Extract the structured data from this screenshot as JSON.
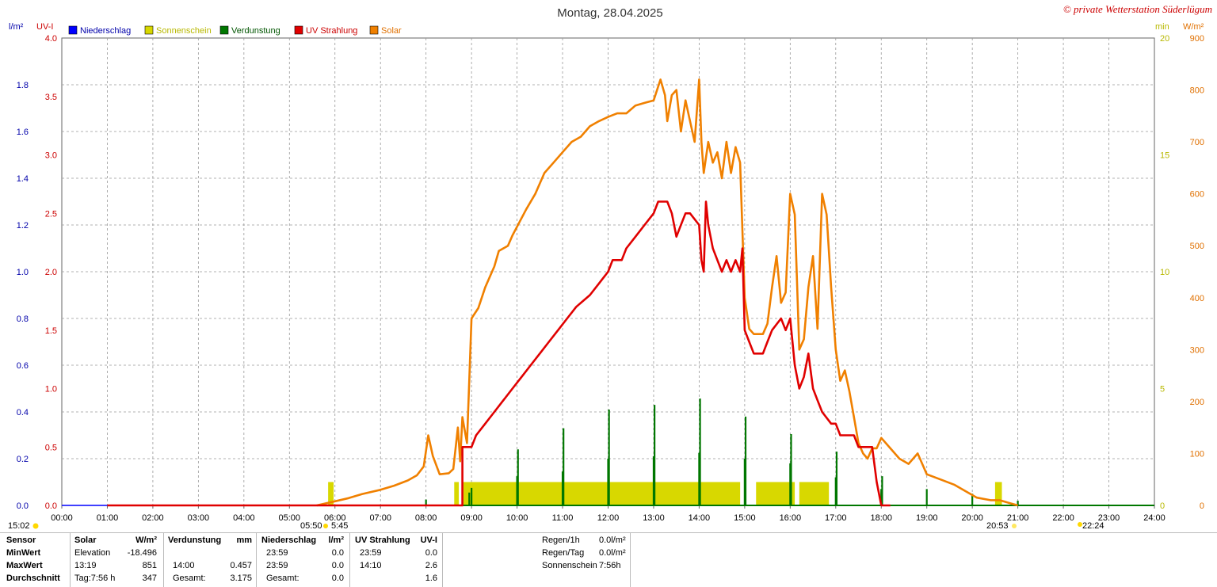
{
  "header": {
    "title": "Montag, 28.04.2025",
    "credit": "© private Wetterstation Süderlügum",
    "left_unit1": "l/m²",
    "left_unit2": "UV-I",
    "right_unit1": "min",
    "right_unit2": "W/m²"
  },
  "legend": [
    {
      "label": "Niederschlag",
      "color": "#0000ff",
      "text_color": "#0000aa"
    },
    {
      "label": "Sonnenschein",
      "color": "#d8d800",
      "text_color": "#b8b800"
    },
    {
      "label": "Verdunstung",
      "color": "#007700",
      "text_color": "#005500"
    },
    {
      "label": "UV Strahlung",
      "color": "#e00000",
      "text_color": "#cc0000"
    },
    {
      "label": "Solar",
      "color": "#f08000",
      "text_color": "#e07000"
    }
  ],
  "sun_markers": {
    "left_time": "15:02",
    "sunrise_a": "05:50",
    "sunrise_b": "5:45",
    "sunset_a": "20:53",
    "moon_b": "22:24"
  },
  "chart_data": {
    "type": "line",
    "x_axis": {
      "ticks": [
        "00:00",
        "01:00",
        "02:00",
        "03:00",
        "04:00",
        "05:00",
        "06:00",
        "07:00",
        "08:00",
        "09:00",
        "10:00",
        "11:00",
        "12:00",
        "13:00",
        "14:00",
        "15:00",
        "16:00",
        "17:00",
        "18:00",
        "19:00",
        "20:00",
        "21:00",
        "22:00",
        "23:00",
        "24:00"
      ],
      "range": [
        0,
        24
      ]
    },
    "axes": {
      "niederschlag": {
        "unit": "l/m²",
        "range": [
          0,
          2.0
        ],
        "ticks": [
          "0.0",
          "0.2",
          "0.4",
          "0.6",
          "0.8",
          "1.0",
          "1.2",
          "1.4",
          "1.6",
          "1.8"
        ],
        "color": "#0000aa"
      },
      "uv": {
        "unit": "UV-I",
        "range": [
          0,
          4.0
        ],
        "ticks": [
          "0.0",
          "0.5",
          "1.0",
          "1.5",
          "2.0",
          "2.5",
          "3.0",
          "3.5",
          "4.0"
        ],
        "color": "#cc0000"
      },
      "sonnenschein": {
        "unit": "min",
        "range": [
          0,
          20
        ],
        "ticks": [
          "0",
          "5",
          "10",
          "15",
          "20"
        ],
        "color": "#b8b800"
      },
      "solar": {
        "unit": "W/m²",
        "range": [
          0,
          900
        ],
        "ticks": [
          "0",
          "100",
          "200",
          "300",
          "400",
          "500",
          "600",
          "700",
          "800",
          "900"
        ],
        "color": "#e07000"
      }
    },
    "grid": true,
    "series": [
      {
        "name": "Solar",
        "axis": "solar",
        "color": "#f08000",
        "points": [
          [
            5.6,
            0
          ],
          [
            5.8,
            4
          ],
          [
            6.0,
            8
          ],
          [
            6.3,
            14
          ],
          [
            6.6,
            22
          ],
          [
            7.0,
            30
          ],
          [
            7.3,
            38
          ],
          [
            7.6,
            48
          ],
          [
            7.8,
            58
          ],
          [
            7.95,
            75
          ],
          [
            8.05,
            135
          ],
          [
            8.15,
            95
          ],
          [
            8.3,
            60
          ],
          [
            8.5,
            62
          ],
          [
            8.6,
            70
          ],
          [
            8.7,
            150
          ],
          [
            8.75,
            85
          ],
          [
            8.8,
            170
          ],
          [
            8.9,
            120
          ],
          [
            9.0,
            360
          ],
          [
            9.15,
            380
          ],
          [
            9.3,
            420
          ],
          [
            9.5,
            460
          ],
          [
            9.6,
            490
          ],
          [
            9.8,
            500
          ],
          [
            9.9,
            520
          ],
          [
            10.2,
            570
          ],
          [
            10.4,
            600
          ],
          [
            10.6,
            640
          ],
          [
            10.8,
            660
          ],
          [
            11.0,
            680
          ],
          [
            11.2,
            700
          ],
          [
            11.4,
            710
          ],
          [
            11.6,
            730
          ],
          [
            11.8,
            740
          ],
          [
            12.0,
            748
          ],
          [
            12.2,
            755
          ],
          [
            12.4,
            755
          ],
          [
            12.6,
            770
          ],
          [
            12.8,
            775
          ],
          [
            13.0,
            780
          ],
          [
            13.15,
            820
          ],
          [
            13.25,
            790
          ],
          [
            13.3,
            740
          ],
          [
            13.4,
            790
          ],
          [
            13.5,
            800
          ],
          [
            13.6,
            720
          ],
          [
            13.7,
            780
          ],
          [
            13.8,
            740
          ],
          [
            13.9,
            700
          ],
          [
            14.0,
            820
          ],
          [
            14.05,
            700
          ],
          [
            14.1,
            640
          ],
          [
            14.2,
            700
          ],
          [
            14.3,
            660
          ],
          [
            14.4,
            680
          ],
          [
            14.5,
            630
          ],
          [
            14.6,
            700
          ],
          [
            14.7,
            640
          ],
          [
            14.8,
            690
          ],
          [
            14.9,
            660
          ],
          [
            15.0,
            400
          ],
          [
            15.1,
            340
          ],
          [
            15.2,
            330
          ],
          [
            15.4,
            330
          ],
          [
            15.5,
            350
          ],
          [
            15.6,
            420
          ],
          [
            15.7,
            480
          ],
          [
            15.8,
            390
          ],
          [
            15.9,
            410
          ],
          [
            16.0,
            600
          ],
          [
            16.1,
            560
          ],
          [
            16.2,
            300
          ],
          [
            16.3,
            320
          ],
          [
            16.4,
            420
          ],
          [
            16.5,
            480
          ],
          [
            16.6,
            340
          ],
          [
            16.7,
            600
          ],
          [
            16.8,
            560
          ],
          [
            16.9,
            420
          ],
          [
            17.0,
            300
          ],
          [
            17.1,
            240
          ],
          [
            17.2,
            260
          ],
          [
            17.3,
            220
          ],
          [
            17.4,
            170
          ],
          [
            17.5,
            120
          ],
          [
            17.6,
            100
          ],
          [
            17.7,
            90
          ],
          [
            17.8,
            110
          ],
          [
            17.9,
            110
          ],
          [
            18.0,
            130
          ],
          [
            18.2,
            110
          ],
          [
            18.4,
            90
          ],
          [
            18.6,
            80
          ],
          [
            18.8,
            100
          ],
          [
            18.9,
            80
          ],
          [
            19.0,
            60
          ],
          [
            19.3,
            50
          ],
          [
            19.6,
            40
          ],
          [
            19.9,
            25
          ],
          [
            20.1,
            15
          ],
          [
            20.4,
            10
          ],
          [
            20.6,
            10
          ],
          [
            20.8,
            5
          ],
          [
            21.0,
            0
          ]
        ]
      },
      {
        "name": "UV Strahlung",
        "axis": "uv",
        "color": "#e00000",
        "points": [
          [
            1.0,
            0
          ],
          [
            4.0,
            0
          ],
          [
            8.8,
            0
          ],
          [
            8.8,
            0.5
          ],
          [
            9.0,
            0.5
          ],
          [
            9.1,
            0.6
          ],
          [
            9.3,
            0.7
          ],
          [
            9.5,
            0.8
          ],
          [
            9.7,
            0.9
          ],
          [
            9.9,
            1.0
          ],
          [
            10.1,
            1.1
          ],
          [
            10.3,
            1.2
          ],
          [
            10.5,
            1.3
          ],
          [
            10.7,
            1.4
          ],
          [
            10.9,
            1.5
          ],
          [
            11.1,
            1.6
          ],
          [
            11.3,
            1.7
          ],
          [
            11.6,
            1.8
          ],
          [
            11.8,
            1.9
          ],
          [
            12.0,
            2.0
          ],
          [
            12.1,
            2.1
          ],
          [
            12.3,
            2.1
          ],
          [
            12.4,
            2.2
          ],
          [
            12.6,
            2.3
          ],
          [
            12.8,
            2.4
          ],
          [
            13.0,
            2.5
          ],
          [
            13.1,
            2.6
          ],
          [
            13.3,
            2.6
          ],
          [
            13.4,
            2.5
          ],
          [
            13.5,
            2.3
          ],
          [
            13.6,
            2.4
          ],
          [
            13.7,
            2.5
          ],
          [
            13.8,
            2.5
          ],
          [
            14.0,
            2.4
          ],
          [
            14.05,
            2.1
          ],
          [
            14.1,
            2.0
          ],
          [
            14.15,
            2.6
          ],
          [
            14.2,
            2.4
          ],
          [
            14.3,
            2.2
          ],
          [
            14.4,
            2.1
          ],
          [
            14.5,
            2.0
          ],
          [
            14.6,
            2.1
          ],
          [
            14.7,
            2.0
          ],
          [
            14.8,
            2.1
          ],
          [
            14.9,
            2.0
          ],
          [
            14.95,
            2.2
          ],
          [
            15.0,
            1.5
          ],
          [
            15.1,
            1.4
          ],
          [
            15.2,
            1.3
          ],
          [
            15.4,
            1.3
          ],
          [
            15.5,
            1.4
          ],
          [
            15.6,
            1.5
          ],
          [
            15.8,
            1.6
          ],
          [
            15.9,
            1.5
          ],
          [
            16.0,
            1.6
          ],
          [
            16.1,
            1.2
          ],
          [
            16.2,
            1.0
          ],
          [
            16.3,
            1.1
          ],
          [
            16.4,
            1.3
          ],
          [
            16.5,
            1.0
          ],
          [
            16.6,
            0.9
          ],
          [
            16.7,
            0.8
          ],
          [
            16.9,
            0.7
          ],
          [
            17.0,
            0.7
          ],
          [
            17.1,
            0.6
          ],
          [
            17.4,
            0.6
          ],
          [
            17.5,
            0.5
          ],
          [
            17.8,
            0.5
          ],
          [
            17.9,
            0.2
          ],
          [
            18.0,
            0
          ],
          [
            18.2,
            0
          ]
        ]
      }
    ],
    "bars": {
      "Sonnenschein": {
        "axis": "sonnenschein",
        "color": "#d8d800",
        "spans": [
          [
            5.85,
            5.97
          ],
          [
            8.62,
            8.72
          ],
          [
            8.82,
            14.9
          ],
          [
            15.25,
            16.1
          ],
          [
            16.2,
            16.85
          ],
          [
            20.5,
            20.65
          ]
        ],
        "value": 1
      },
      "Verdunstung": {
        "axis": "niederschlag",
        "color": "#007700",
        "spikes": [
          [
            8.0,
            0.025
          ],
          [
            8.95,
            0.055
          ],
          [
            9.0,
            0.075
          ],
          [
            10.0,
            0.125
          ],
          [
            10.02,
            0.24
          ],
          [
            11.0,
            0.145
          ],
          [
            11.02,
            0.33
          ],
          [
            12.0,
            0.2
          ],
          [
            12.02,
            0.41
          ],
          [
            13.0,
            0.21
          ],
          [
            13.02,
            0.43
          ],
          [
            14.0,
            0.225
          ],
          [
            14.02,
            0.457
          ],
          [
            15.0,
            0.2
          ],
          [
            15.02,
            0.38
          ],
          [
            16.0,
            0.18
          ],
          [
            16.02,
            0.305
          ],
          [
            17.0,
            0.12
          ],
          [
            17.02,
            0.23
          ],
          [
            18.0,
            0.07
          ],
          [
            18.02,
            0.125
          ],
          [
            19.0,
            0.07
          ],
          [
            20.0,
            0.05
          ],
          [
            21.0,
            0.02
          ]
        ]
      },
      "Niederschlag": {
        "axis": "niederschlag",
        "color": "#0000ff",
        "value": 0
      }
    }
  },
  "table": {
    "headers": [
      "Sensor",
      "Solar",
      "W/m²",
      "Verdunstung",
      "mm",
      "Niederschlag",
      "l/m²",
      "UV Strahlung",
      "UV-I"
    ],
    "rows": [
      {
        "label": "MinWert",
        "c1": "Elevation",
        "c2": "-18.496",
        "c3": "",
        "c4": "",
        "c5": "23:59",
        "c6": "0.0",
        "c7": "23:59",
        "c8": "0.0"
      },
      {
        "label": "MaxWert",
        "c1": "13:19",
        "c2": "851",
        "c3": "14:00",
        "c4": "0.457",
        "c5": "23:59",
        "c6": "0.0",
        "c7": "14:10",
        "c8": "2.6"
      },
      {
        "label": "Durchschnitt",
        "c1": "Tag:7:56 h",
        "c2": "347",
        "c3": "Gesamt:",
        "c4": "3.175",
        "c5": "Gesamt:",
        "c6": "0.0",
        "c7": "",
        "c8": "1.6"
      }
    ],
    "summary": [
      {
        "label": "Regen/1h",
        "value": "0.0l/m²"
      },
      {
        "label": "Regen/Tag",
        "value": "0.0l/m²"
      },
      {
        "label": "Sonnenschein",
        "value": "7:56h"
      }
    ]
  }
}
